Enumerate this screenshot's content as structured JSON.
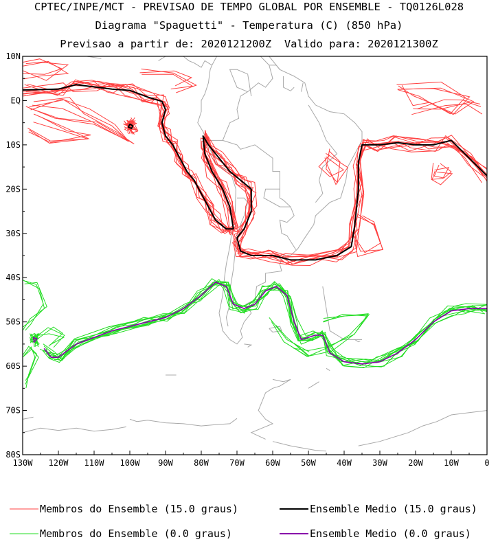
{
  "chart_data": {
    "type": "line",
    "title_lines": [
      "CPTEC/INPE/MCT - PREVISAO DE TEMPO GLOBAL POR ENSEMBLE - TQ0126L028",
      "Diagrama \"Spaguetti\" - Temperatura (C) (850 hPa)",
      "Previsao a partir de: 2020121200Z  Valido para: 2020121300Z"
    ],
    "x_ticks": [
      {
        "value": -130,
        "label": "130W"
      },
      {
        "value": -120,
        "label": "120W"
      },
      {
        "value": -110,
        "label": "110W"
      },
      {
        "value": -100,
        "label": "100W"
      },
      {
        "value": -90,
        "label": "90W"
      },
      {
        "value": -80,
        "label": "80W"
      },
      {
        "value": -70,
        "label": "70W"
      },
      {
        "value": -60,
        "label": "60W"
      },
      {
        "value": -50,
        "label": "50W"
      },
      {
        "value": -40,
        "label": "40W"
      },
      {
        "value": -30,
        "label": "30W"
      },
      {
        "value": -20,
        "label": "20W"
      },
      {
        "value": -10,
        "label": "10W"
      },
      {
        "value": 0,
        "label": "0"
      }
    ],
    "y_ticks": [
      {
        "value": 10,
        "label": "10N"
      },
      {
        "value": 0,
        "label": "EQ"
      },
      {
        "value": -10,
        "label": "10S"
      },
      {
        "value": -20,
        "label": "20S"
      },
      {
        "value": -30,
        "label": "30S"
      },
      {
        "value": -40,
        "label": "40S"
      },
      {
        "value": -50,
        "label": "50S"
      },
      {
        "value": -60,
        "label": "60S"
      },
      {
        "value": -70,
        "label": "70S"
      },
      {
        "value": -80,
        "label": "80S"
      }
    ],
    "xlim": [
      -130,
      0
    ],
    "ylim": [
      -80,
      10
    ],
    "colors": {
      "members_15": "#ff4040",
      "mean_15": "#000000",
      "members_0": "#22dd22",
      "mean_0": "#8800aa",
      "coast": "#a8a8a8"
    },
    "series": [
      {
        "name": "Ensemble Medio (15.0 graus)",
        "segments": [
          [
            [
              -130,
              2.4
            ],
            [
              -120,
              2.6
            ],
            [
              -115,
              3.6
            ],
            [
              -110,
              3.1
            ],
            [
              -105,
              2.6
            ],
            [
              -100,
              2.3
            ],
            [
              -95,
              0.8
            ],
            [
              -91,
              -0.2
            ],
            [
              -90,
              -2
            ],
            [
              -91,
              -5
            ],
            [
              -90,
              -8
            ],
            [
              -88,
              -10
            ],
            [
              -86,
              -13
            ],
            [
              -84,
              -16
            ],
            [
              -82,
              -18
            ],
            [
              -80,
              -21
            ],
            [
              -78,
              -24
            ],
            [
              -76,
              -27
            ],
            [
              -73,
              -29
            ],
            [
              -71,
              -29
            ],
            [
              -72,
              -24
            ],
            [
              -74,
              -20
            ],
            [
              -77,
              -16
            ],
            [
              -79,
              -12
            ],
            [
              -79.5,
              -8
            ],
            [
              -78,
              -10
            ],
            [
              -75,
              -13
            ],
            [
              -72,
              -16
            ],
            [
              -69,
              -18
            ],
            [
              -66,
              -20
            ],
            [
              -66,
              -25
            ],
            [
              -68,
              -29
            ],
            [
              -70,
              -31
            ],
            [
              -69,
              -34
            ],
            [
              -66,
              -35
            ],
            [
              -60,
              -35
            ],
            [
              -55,
              -36
            ],
            [
              -48,
              -36
            ],
            [
              -42,
              -35
            ],
            [
              -38,
              -33
            ],
            [
              -37,
              -28
            ],
            [
              -36,
              -20
            ],
            [
              -36,
              -14
            ],
            [
              -35,
              -10
            ],
            [
              -30,
              -10
            ],
            [
              -25,
              -9.5
            ],
            [
              -20,
              -10
            ],
            [
              -15,
              -10
            ],
            [
              -10,
              -9
            ],
            [
              -5,
              -13
            ],
            [
              0,
              -17
            ]
          ],
          [
            [
              -100,
              -5.3
            ],
            [
              -99.2,
              -5.7
            ],
            [
              -99.5,
              -6.3
            ],
            [
              -100.4,
              -6
            ],
            [
              -100,
              -5.3
            ]
          ]
        ]
      },
      {
        "name": "Ensemble Medio (0.0 graus)",
        "segments": [
          [
            [
              -124,
              -56
            ],
            [
              -122,
              -58
            ],
            [
              -120,
              -58
            ],
            [
              -115,
              -55
            ],
            [
              -105,
              -52
            ],
            [
              -95,
              -50
            ],
            [
              -90,
              -49
            ],
            [
              -85,
              -47
            ],
            [
              -80,
              -44
            ],
            [
              -76,
              -41
            ],
            [
              -73,
              -42
            ],
            [
              -71,
              -46
            ],
            [
              -68,
              -47
            ],
            [
              -65,
              -46
            ],
            [
              -62,
              -43
            ],
            [
              -59,
              -42
            ],
            [
              -56,
              -44
            ],
            [
              -54,
              -50
            ],
            [
              -52,
              -54
            ],
            [
              -48,
              -53
            ],
            [
              -46,
              -53
            ],
            [
              -44,
              -57
            ],
            [
              -40,
              -59
            ],
            [
              -35,
              -59.5
            ],
            [
              -30,
              -59
            ],
            [
              -25,
              -57
            ],
            [
              -20,
              -54
            ],
            [
              -15,
              -50
            ],
            [
              -10,
              -47.5
            ],
            [
              -5,
              -47
            ],
            [
              0,
              -47
            ]
          ],
          [
            [
              -127,
              -53.5
            ],
            [
              -126,
              -53.8
            ],
            [
              -126.8,
              -54.6
            ],
            [
              -127,
              -53.5
            ]
          ]
        ]
      }
    ],
    "legend": [
      {
        "label": "Membros do Ensemble (15.0 graus)",
        "color": "#ff4040"
      },
      {
        "label": "Ensemble Medio (15.0 graus)",
        "color": "#000000"
      },
      {
        "label": "Membros do Ensemble (0.0 graus)",
        "color": "#22dd22"
      },
      {
        "label": "Ensemble Medio (0.0 graus)",
        "color": "#8800aa"
      }
    ]
  }
}
